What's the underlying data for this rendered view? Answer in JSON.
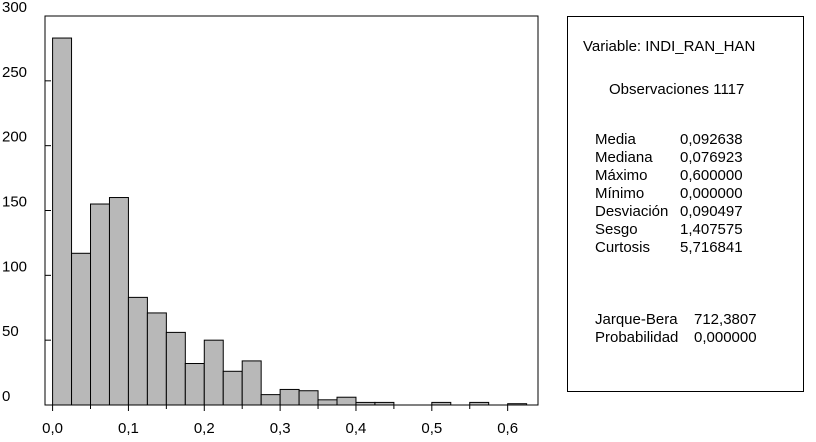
{
  "chart_data": {
    "type": "bar",
    "title": "",
    "xlabel": "",
    "ylabel": "",
    "bin_width": 0.025,
    "x_start": 0.0,
    "values": [
      283,
      117,
      155,
      160,
      83,
      71,
      56,
      32,
      50,
      26,
      34,
      8,
      12,
      11,
      4,
      6,
      2,
      2,
      0,
      0,
      2,
      0,
      2,
      0,
      1
    ],
    "xlim": [
      -0.01,
      0.64
    ],
    "ylim": [
      0,
      300
    ],
    "xticks": [
      0.0,
      0.1,
      0.2,
      0.3,
      0.4,
      0.5,
      0.6
    ],
    "xtick_labels": [
      "0,0",
      "0,1",
      "0,2",
      "0,3",
      "0,4",
      "0,5",
      "0,6"
    ],
    "yticks": [
      0,
      50,
      100,
      150,
      200,
      250,
      300
    ],
    "ytick_labels": [
      "0",
      "50",
      "100",
      "150",
      "200",
      "250",
      "300"
    ],
    "grid": false,
    "bar_color": "#b8b8b8",
    "edge_color": "#000000"
  },
  "stats": {
    "variable_line": "Variable: INDI_RAN_HAN",
    "observations_line": "Observaciones 1117",
    "rows": [
      {
        "label": "Media",
        "value": "0,092638"
      },
      {
        "label": "Mediana",
        "value": "0,076923"
      },
      {
        "label": "Máximo",
        "value": "0,600000"
      },
      {
        "label": "Mínimo",
        "value": "0,000000"
      },
      {
        "label": "Desviación",
        "value": "0,090497"
      },
      {
        "label": "Sesgo",
        "value": "1,407575"
      },
      {
        "label": "Curtosis",
        "value": "5,716841"
      }
    ],
    "tests": [
      {
        "label": "Jarque-Bera",
        "value": "712,3807"
      },
      {
        "label": "Probabilidad",
        "value": "0,000000"
      }
    ]
  }
}
